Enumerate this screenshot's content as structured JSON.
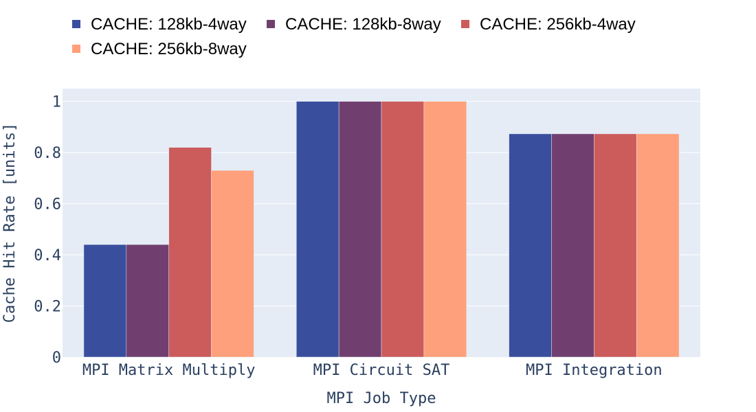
{
  "chart_data": {
    "type": "bar",
    "categories": [
      "MPI Matrix Multiply",
      "MPI Circuit SAT",
      "MPI Integration"
    ],
    "series": [
      {
        "name": "CACHE: 128kb-4way",
        "color": "#3a4e9e",
        "values": [
          0.44,
          1.0,
          0.873
        ]
      },
      {
        "name": "CACHE: 128kb-8way",
        "color": "#713f6f",
        "values": [
          0.44,
          1.0,
          0.873
        ]
      },
      {
        "name": "CACHE: 256kb-4way",
        "color": "#cb5c5b",
        "values": [
          0.82,
          1.0,
          0.873
        ]
      },
      {
        "name": "CACHE: 256kb-8way",
        "color": "#fea07b",
        "values": [
          0.73,
          1.0,
          0.873
        ]
      }
    ],
    "xlabel": "MPI Job Type",
    "ylabel": "Cache Hit Rate [units]",
    "ylim": [
      0,
      1.05
    ],
    "yticks": [
      0,
      0.2,
      0.4,
      0.6,
      0.8,
      1
    ],
    "ytick_labels": [
      "0",
      "0.2",
      "0.4",
      "0.6",
      "0.8",
      "1"
    ],
    "grid": true,
    "legend_position": "top-left",
    "plot_background": "#e5ecf6"
  }
}
